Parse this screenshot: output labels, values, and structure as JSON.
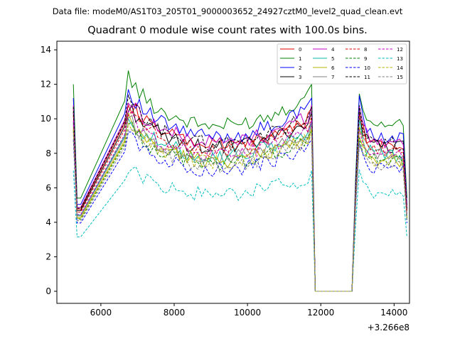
{
  "suptitle": "Data file: modeM0/AS1T03_205T01_9000003652_24927cztM0_level2_quad_clean.evt",
  "chart_data": {
    "type": "line",
    "title": "Quadrant 0 module wise count rates with 100.0s bins.",
    "xlabel": "",
    "ylabel": "",
    "x_offset_label": "+3.266e8",
    "x_offset": 326600000,
    "xlim": [
      4800,
      14420
    ],
    "ylim": [
      -0.7,
      14.5
    ],
    "xticks": [
      6000,
      8000,
      10000,
      12000,
      14000
    ],
    "yticks": [
      0,
      2,
      4,
      6,
      8,
      10,
      12,
      14
    ],
    "grid": false,
    "legend_position": "top-right",
    "x_segments": [
      {
        "start": 5250,
        "end": 5450,
        "step": 100
      },
      {
        "start": 6650,
        "end": 11750,
        "step": 100
      },
      {
        "start": 11850,
        "end": 12850,
        "step": 100
      },
      {
        "start": 12950,
        "end": 14350,
        "step": 100
      }
    ],
    "profile": {
      "seg1_vals": [
        1.0,
        0.45
      ],
      "seg2_start": 1.0,
      "seg2_level": 0.88,
      "seg2_dip": 0.14,
      "seg2_end": 1.0,
      "seg3_level": 0.0,
      "seg4_start": 0.95,
      "seg4_level": 0.8,
      "seg4_end": 0.45
    },
    "series": [
      {
        "name": "0",
        "color": "#e00000",
        "dash": "solid",
        "level": 10.6
      },
      {
        "name": "1",
        "color": "#008000",
        "dash": "solid",
        "level": 12.0
      },
      {
        "name": "2",
        "color": "#0000ff",
        "dash": "solid",
        "level": 11.2
      },
      {
        "name": "3",
        "color": "#000000",
        "dash": "solid",
        "level": 10.4
      },
      {
        "name": "4",
        "color": "#c000c0",
        "dash": "solid",
        "level": 10.8
      },
      {
        "name": "5",
        "color": "#00bfa5",
        "dash": "solid",
        "level": 9.8
      },
      {
        "name": "6",
        "color": "#b5b500",
        "dash": "solid",
        "level": 9.5
      },
      {
        "name": "7",
        "color": "#808080",
        "dash": "solid",
        "level": 9.7
      },
      {
        "name": "8",
        "color": "#e00000",
        "dash": "dashed",
        "level": 10.2
      },
      {
        "name": "9",
        "color": "#008000",
        "dash": "dashed",
        "level": 9.3
      },
      {
        "name": "10",
        "color": "#0000ff",
        "dash": "dashed",
        "level": 8.8
      },
      {
        "name": "11",
        "color": "#000000",
        "dash": "dashed",
        "level": 10.7
      },
      {
        "name": "12",
        "color": "#c000c0",
        "dash": "dashed",
        "level": 9.9
      },
      {
        "name": "13",
        "color": "#00bfbf",
        "dash": "dashed",
        "level": 7.0
      },
      {
        "name": "14",
        "color": "#b5b500",
        "dash": "dashed",
        "level": 9.4
      },
      {
        "name": "15",
        "color": "#808080",
        "dash": "dashed",
        "level": 9.1
      }
    ]
  }
}
